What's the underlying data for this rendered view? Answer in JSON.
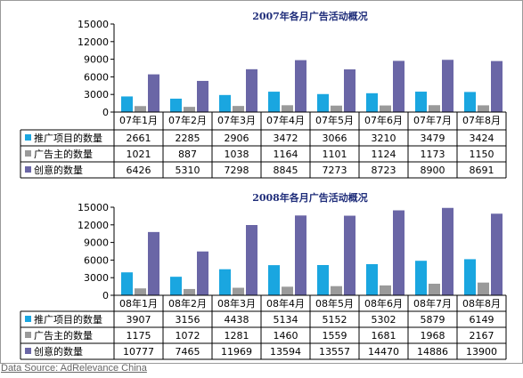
{
  "source_label": "Data Source: AdRelevance China",
  "colors": {
    "s0": "#1aa6e0",
    "s1": "#9a9a9a",
    "s2": "#6a66a6"
  },
  "chart_data": [
    {
      "type": "bar",
      "title": "2007年各月广告活动概况",
      "ylim": [
        0,
        15000
      ],
      "yticks": [
        "0",
        "3000",
        "6000",
        "9000",
        "12000",
        "15000"
      ],
      "categories": [
        "07年1月",
        "07年2月",
        "07年3月",
        "07年4月",
        "07年5月",
        "07年6月",
        "07年7月",
        "07年8月"
      ],
      "series": [
        {
          "name": "推广项目的数量",
          "values": [
            2661,
            2285,
            2906,
            3472,
            3066,
            3210,
            3479,
            3424
          ]
        },
        {
          "name": "广告主的数量",
          "values": [
            1021,
            887,
            1038,
            1164,
            1101,
            1124,
            1173,
            1150
          ]
        },
        {
          "name": "创意的数量",
          "values": [
            6426,
            5310,
            7298,
            8845,
            7273,
            8723,
            8900,
            8691
          ]
        }
      ]
    },
    {
      "type": "bar",
      "title": "2008年各月广告活动概况",
      "ylim": [
        0,
        15000
      ],
      "yticks": [
        "0",
        "3000",
        "6000",
        "9000",
        "12000",
        "15000"
      ],
      "categories": [
        "08年1月",
        "08年2月",
        "08年3月",
        "08年4月",
        "08年5月",
        "08年6月",
        "08年7月",
        "08年8月"
      ],
      "series": [
        {
          "name": "推广项目的数量",
          "values": [
            3907,
            3156,
            4438,
            5134,
            5152,
            5302,
            5879,
            6149
          ]
        },
        {
          "name": "广告主的数量",
          "values": [
            1175,
            1072,
            1281,
            1460,
            1559,
            1681,
            1968,
            2167
          ]
        },
        {
          "name": "创意的数量",
          "values": [
            10777,
            7465,
            11969,
            13594,
            13557,
            14470,
            14886,
            13900
          ]
        }
      ]
    }
  ]
}
